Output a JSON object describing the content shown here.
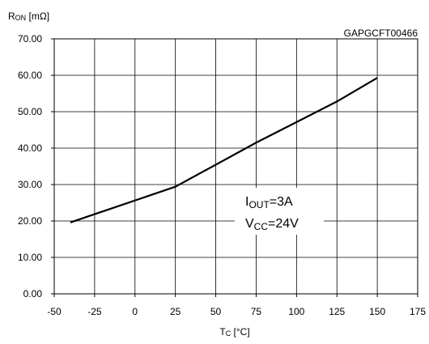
{
  "chart_data": {
    "type": "line",
    "title": "",
    "code": "GAPGCFT00466",
    "ylabel": {
      "main": "R",
      "sub": "ON",
      "unit": " [mΩ]"
    },
    "xlabel": {
      "main": "T",
      "sub": "C",
      "unit": " [°C]"
    },
    "xlim": [
      -50,
      175
    ],
    "ylim": [
      0,
      70
    ],
    "x_ticks": [
      "-50",
      "-25",
      "0",
      "25",
      "50",
      "75",
      "100",
      "125",
      "150",
      "175"
    ],
    "y_ticks": [
      "0.00",
      "10.00",
      "20.00",
      "30.00",
      "40.00",
      "50.00",
      "60.00",
      "70.00"
    ],
    "grid": true,
    "series": [
      {
        "x": [
          -40,
          25,
          75,
          125,
          150
        ],
        "y": [
          19.6,
          29.4,
          41.5,
          52.8,
          59.3
        ]
      }
    ],
    "annotations": {
      "iout": {
        "main": "I",
        "sub": "OUT",
        "value": "=3A"
      },
      "vcc": {
        "main": "V",
        "sub": "CC",
        "value": "=24V"
      }
    }
  }
}
